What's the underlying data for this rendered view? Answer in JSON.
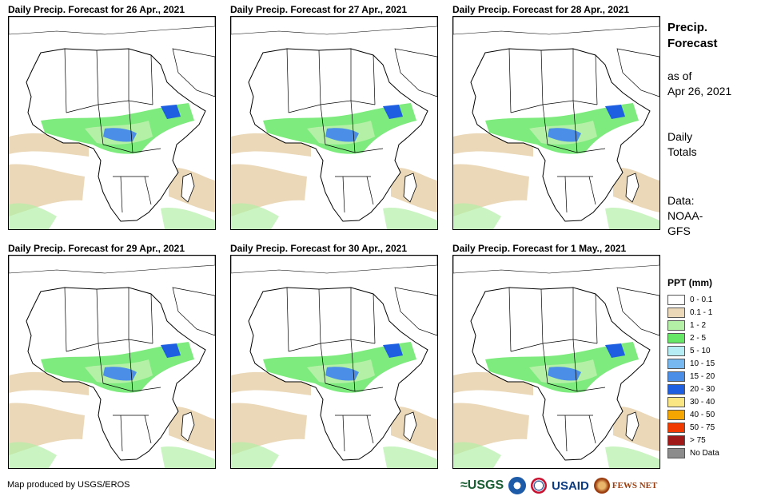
{
  "panels": [
    {
      "title": "Daily Precip. Forecast for 26 Apr., 2021"
    },
    {
      "title": "Daily Precip. Forecast for 27 Apr., 2021"
    },
    {
      "title": "Daily Precip. Forecast for 28 Apr., 2021"
    },
    {
      "title": "Daily Precip. Forecast for 29 Apr., 2021"
    },
    {
      "title": "Daily Precip. Forecast for 30 Apr., 2021"
    },
    {
      "title": "Daily Precip. Forecast for 1 May., 2021"
    }
  ],
  "side": {
    "title_line1": "Precip.",
    "title_line2": "Forecast",
    "asof_line1": "as of",
    "asof_line2": "Apr 26, 2021",
    "daily_line1": "Daily",
    "daily_line2": "Totals",
    "data_line1": "Data:",
    "data_line2": "NOAA-",
    "data_line3": "GFS"
  },
  "legend": {
    "title": "PPT (mm)",
    "items": [
      {
        "label": "0 - 0.1",
        "color": "#ffffff"
      },
      {
        "label": "0.1 - 1",
        "color": "#ead8b8"
      },
      {
        "label": "1 - 2",
        "color": "#b4f0a6"
      },
      {
        "label": "2 - 5",
        "color": "#66e866"
      },
      {
        "label": "5 - 10",
        "color": "#b6ecf4"
      },
      {
        "label": "10 - 15",
        "color": "#78b8f0"
      },
      {
        "label": "15 - 20",
        "color": "#4a8ee8"
      },
      {
        "label": "20 - 30",
        "color": "#1e5ee0"
      },
      {
        "label": "30 - 40",
        "color": "#fae682"
      },
      {
        "label": "40 - 50",
        "color": "#f5a600"
      },
      {
        "label": "50 - 75",
        "color": "#f03a00"
      },
      {
        "label": "> 75",
        "color": "#a01a1a"
      },
      {
        "label": "No Data",
        "color": "#8c8c8c"
      }
    ]
  },
  "footer": {
    "credit": "Map produced by USGS/EROS",
    "logo_usgs": "≈USGS",
    "logo_usaid": "USAID",
    "logo_fews": "FEWS NET"
  }
}
